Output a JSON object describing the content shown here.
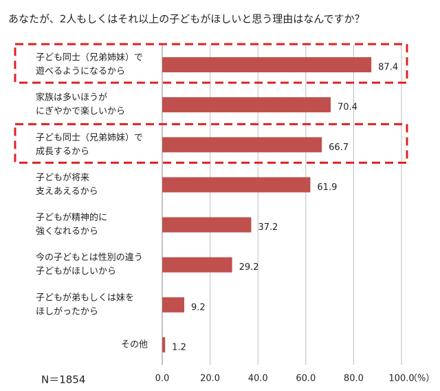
{
  "chart_data": {
    "type": "bar",
    "orientation": "horizontal",
    "title": "あなたが、2人もしくはそれ以上の子どもがほしいと思う理由はなんですか？",
    "categories": [
      [
        "子ども同士（兄弟姉妹）で",
        "遊べるようになるから"
      ],
      [
        "家族は多いほうが",
        "にぎやかで楽しいから"
      ],
      [
        "子ども同士（兄弟姉妹）で",
        "成長するから"
      ],
      [
        "子どもが将来",
        "支えあえるから"
      ],
      [
        "子どもが精神的に",
        "強くなれるから"
      ],
      [
        "今の子どもとは性別の違う",
        "子どもがほしいから"
      ],
      [
        "子どもが弟もしくは妹を",
        "ほしがったから"
      ],
      [
        "その他"
      ]
    ],
    "values": [
      87.4,
      70.4,
      66.7,
      61.9,
      37.2,
      29.2,
      9.2,
      1.2
    ],
    "color": "#c0504d",
    "xlim": [
      0,
      100
    ],
    "xticks": [
      {
        "value": 0,
        "label": "0.0"
      },
      {
        "value": 20,
        "label": "20.0"
      },
      {
        "value": 40,
        "label": "40.0"
      },
      {
        "value": 60,
        "label": "60.0"
      },
      {
        "value": 80,
        "label": "80.0"
      },
      {
        "value": 100,
        "label": "100.0"
      }
    ],
    "x_unit": "（%）",
    "annotation": "N＝1854",
    "grid": true,
    "highlighted_categories": [
      0,
      2
    ],
    "highlight_color": "#e02020"
  }
}
